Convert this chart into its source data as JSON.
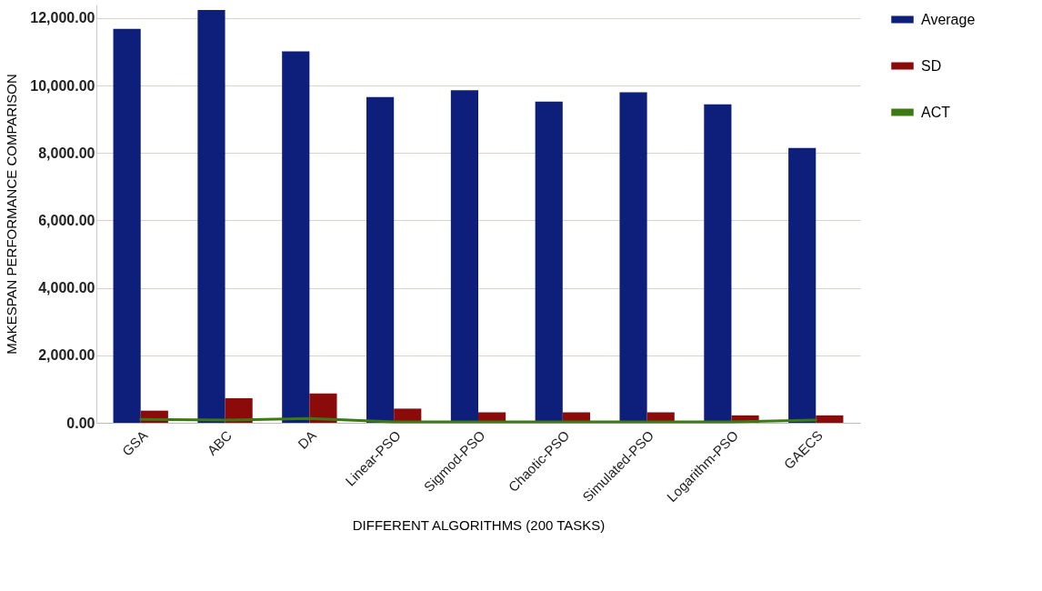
{
  "chart_data": {
    "type": "bar",
    "xlabel": "DIFFERENT ALGORITHMS (200 TASKS)",
    "ylabel": "MAKESPAN PERFORMANCE COMPARISON",
    "categories": [
      "GSA",
      "ABC",
      "DA",
      "Linear-PSO",
      "Sigmod-PSO",
      "Chaotic-PSO",
      "Simulated-PSO",
      "Logarithm-PSO",
      "GAECS"
    ],
    "series": [
      {
        "name": "Average",
        "color": "#0d1f7a",
        "values": [
          11680,
          12240,
          11010,
          9660,
          9860,
          9520,
          9800,
          9440,
          8150
        ]
      },
      {
        "name": "SD",
        "color": "#8b0b0b",
        "values": [
          360,
          730,
          870,
          420,
          310,
          310,
          310,
          220,
          220
        ]
      },
      {
        "name": "ACT",
        "type": "line",
        "color": "#3d7a14",
        "values": [
          100,
          80,
          130,
          30,
          30,
          30,
          30,
          30,
          80
        ]
      }
    ],
    "ylim": [
      0,
      12400
    ],
    "yticks": [
      {
        "value": 0,
        "label": "0.00"
      },
      {
        "value": 2000,
        "label": "2,000.00"
      },
      {
        "value": 4000,
        "label": "4,000.00"
      },
      {
        "value": 6000,
        "label": "6,000.00"
      },
      {
        "value": 8000,
        "label": "8,000.00"
      },
      {
        "value": 10000,
        "label": "10,000.00"
      },
      {
        "value": 12000,
        "label": "12,000.00"
      }
    ],
    "grid": "y",
    "legend": "top right"
  }
}
